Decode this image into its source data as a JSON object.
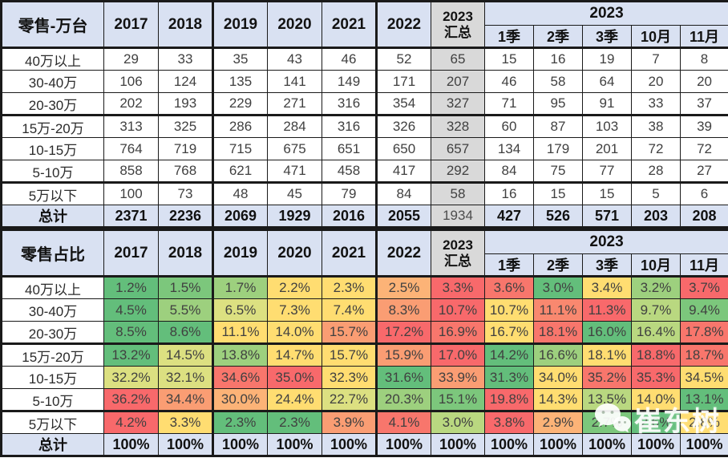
{
  "chart_data": {
    "type": "table",
    "tables": [
      {
        "title": "零售-万台",
        "years": [
          "2017",
          "2018",
          "2019",
          "2020",
          "2021",
          "2022"
        ],
        "summary": {
          "line1": "2023",
          "line2": "汇总"
        },
        "group": "2023",
        "subs": [
          "1季",
          "2季",
          "3季",
          "10月",
          "11月"
        ],
        "rows": [
          {
            "label": "40万以上",
            "values": [
              "29",
              "33",
              "35",
              "43",
              "46",
              "52",
              "65",
              "15",
              "16",
              "19",
              "7",
              "8"
            ]
          },
          {
            "label": "30-40万",
            "values": [
              "106",
              "124",
              "135",
              "141",
              "149",
              "171",
              "207",
              "46",
              "58",
              "64",
              "20",
              "20"
            ]
          },
          {
            "label": "20-30万",
            "values": [
              "202",
              "193",
              "229",
              "271",
              "316",
              "354",
              "327",
              "71",
              "95",
              "91",
              "33",
              "37"
            ]
          },
          {
            "label": "15万-20万",
            "values": [
              "313",
              "325",
              "286",
              "284",
              "316",
              "326",
              "328",
              "60",
              "87",
              "103",
              "38",
              "39"
            ]
          },
          {
            "label": "10-15万",
            "values": [
              "764",
              "719",
              "715",
              "675",
              "651",
              "650",
              "657",
              "134",
              "179",
              "201",
              "72",
              "72"
            ]
          },
          {
            "label": "5-10万",
            "values": [
              "858",
              "768",
              "621",
              "471",
              "458",
              "417",
              "292",
              "84",
              "75",
              "77",
              "28",
              "27"
            ]
          },
          {
            "label": "5万以下",
            "values": [
              "100",
              "73",
              "48",
              "45",
              "79",
              "84",
              "58",
              "16",
              "15",
              "15",
              "5",
              "6"
            ]
          },
          {
            "label": "总计",
            "total": true,
            "values": [
              "2371",
              "2236",
              "2069",
              "1929",
              "2016",
              "2055",
              "1934",
              "427",
              "526",
              "571",
              "203",
              "208"
            ]
          }
        ]
      },
      {
        "title": "零售占比",
        "years": [
          "2017",
          "2018",
          "2019",
          "2020",
          "2021",
          "2022"
        ],
        "summary": {
          "line1": "2023",
          "line2": "汇总"
        },
        "group": "2023",
        "subs": [
          "1季",
          "2季",
          "3季",
          "10月",
          "11月"
        ],
        "rows": [
          {
            "label": "40万以上",
            "values": [
              "1.2%",
              "1.5%",
              "1.7%",
              "2.2%",
              "2.3%",
              "2.5%",
              "3.3%",
              "3.6%",
              "3.0%",
              "3.4%",
              "3.2%",
              "3.7%"
            ],
            "colors": [
              "g1",
              "g2",
              "g3",
              "y",
              "y",
              "o1",
              "r",
              "r2",
              "g1",
              "y",
              "g3",
              "r"
            ]
          },
          {
            "label": "30-40万",
            "values": [
              "4.5%",
              "5.5%",
              "6.5%",
              "7.3%",
              "7.4%",
              "8.3%",
              "10.7%",
              "10.7%",
              "11.1%",
              "11.3%",
              "9.7%",
              "9.4%"
            ],
            "colors": [
              "g1",
              "g3",
              "g5",
              "y",
              "y",
              "o",
              "r",
              "y",
              "r1",
              "r",
              "g4",
              "g2"
            ]
          },
          {
            "label": "20-30万",
            "values": [
              "8.5%",
              "8.6%",
              "11.1%",
              "14.0%",
              "15.7%",
              "17.2%",
              "16.9%",
              "16.7%",
              "18.1%",
              "16.0%",
              "16.4%",
              "17.8%"
            ],
            "colors": [
              "g1",
              "g1",
              "y",
              "y",
              "o",
              "r",
              "r2",
              "y",
              "r2",
              "g1",
              "g4",
              "r2"
            ]
          },
          {
            "label": "15万-20万",
            "values": [
              "13.2%",
              "14.5%",
              "13.8%",
              "14.7%",
              "15.7%",
              "15.9%",
              "17.0%",
              "14.2%",
              "16.6%",
              "18.1%",
              "18.8%",
              "18.7%"
            ],
            "colors": [
              "g1",
              "g5",
              "g3",
              "y",
              "y",
              "o",
              "r",
              "g1",
              "g3",
              "y",
              "r",
              "r2"
            ]
          },
          {
            "label": "10-15万",
            "values": [
              "32.2%",
              "32.1%",
              "34.6%",
              "35.0%",
              "32.3%",
              "31.6%",
              "33.9%",
              "31.3%",
              "34.0%",
              "35.2%",
              "35.3%",
              "34.5%"
            ],
            "colors": [
              "g5",
              "g5",
              "r2",
              "r",
              "y",
              "g1",
              "o",
              "g1",
              "y",
              "r2",
              "r",
              "y"
            ]
          },
          {
            "label": "5-10万",
            "values": [
              "36.2%",
              "34.4%",
              "30.0%",
              "24.4%",
              "22.7%",
              "20.3%",
              "15.1%",
              "19.8%",
              "14.3%",
              "13.5%",
              "14.0%",
              "13.1%"
            ],
            "colors": [
              "r",
              "o",
              "o1",
              "y",
              "g5",
              "g3",
              "g2",
              "r",
              "y",
              "g4",
              "y",
              "g1"
            ]
          },
          {
            "label": "5万以下",
            "values": [
              "4.2%",
              "3.3%",
              "2.3%",
              "2.3%",
              "3.9%",
              "4.1%",
              "3.0%",
              "3.8%",
              "2.9%",
              "2.7%",
              "2.6%",
              "2.8%"
            ],
            "colors": [
              "r",
              "y",
              "g1",
              "g1",
              "o",
              "r2",
              "g4",
              "r",
              "o1",
              "g2",
              "g1",
              "y"
            ]
          },
          {
            "label": "总计",
            "total": true,
            "values": [
              "100%",
              "100%",
              "100%",
              "100%",
              "100%",
              "100%",
              "100%",
              "100%",
              "100%",
              "100%",
              "100%",
              "100%"
            ]
          }
        ]
      }
    ]
  },
  "palette": {
    "g1": "#63BE7B",
    "g2": "#7CC77C",
    "g3": "#9DD07E",
    "g4": "#B9D880",
    "g5": "#DCE081",
    "y": "#FFDD71",
    "o1": "#FCB377",
    "o": "#FA9D73",
    "r1": "#F9886F",
    "r2": "#F8766C",
    "r": "#F8696B",
    "header_bg": "#D9E1F2",
    "summary_bg": "#D9D9D9",
    "total_bg": "#D9E1F2",
    "border": "#1A1A1A"
  },
  "watermark": {
    "text": "崔东树",
    "icon": "wechat-icon"
  }
}
